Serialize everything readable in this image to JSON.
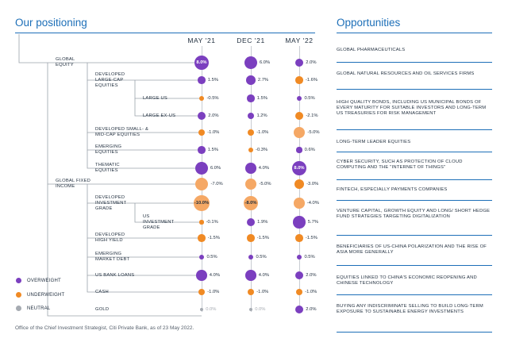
{
  "positioning": {
    "title": "Our positioning",
    "columns": [
      "MAY '21",
      "DEC '21",
      "MAY '22"
    ]
  },
  "legend": {
    "overweight": {
      "label": "OVERWEIGHT",
      "color": "#7b3fbf"
    },
    "underweight": {
      "label": "UNDERWEIGHT",
      "color": "#f08a24"
    },
    "neutral": {
      "label": "NEUTRAL",
      "color": "#a6abb2"
    }
  },
  "colors": {
    "overweight": "#7b3fbf",
    "underweight": "#f08a24",
    "underweight_light": "#f5a865",
    "neutral": "#a6abb2",
    "accent": "#1d6fb8"
  },
  "rows": [
    {
      "label": "GLOBAL EQUITY",
      "values": [
        {
          "text": "8.0%",
          "value": 8.0,
          "stance": "overweight"
        },
        {
          "text": "6.0%",
          "value": 6.0,
          "stance": "overweight"
        },
        {
          "text": "2.0%",
          "value": 2.0,
          "stance": "overweight"
        }
      ]
    },
    {
      "label": "DEVELOPED LARGE-CAP EQUITIES",
      "values": [
        {
          "text": "1.5%",
          "value": 1.5,
          "stance": "overweight"
        },
        {
          "text": "2.7%",
          "value": 2.7,
          "stance": "overweight"
        },
        {
          "text": "-1.6%",
          "value": -1.6,
          "stance": "underweight"
        }
      ]
    },
    {
      "label": "LARGE US",
      "values": [
        {
          "text": "-0.5%",
          "value": -0.5,
          "stance": "underweight"
        },
        {
          "text": "1.5%",
          "value": 1.5,
          "stance": "overweight"
        },
        {
          "text": "0.5%",
          "value": 0.5,
          "stance": "overweight"
        }
      ]
    },
    {
      "label": "LARGE EX-US",
      "values": [
        {
          "text": "2.0%",
          "value": 2.0,
          "stance": "overweight"
        },
        {
          "text": "1.2%",
          "value": 1.2,
          "stance": "overweight"
        },
        {
          "text": "-2.1%",
          "value": -2.1,
          "stance": "underweight"
        }
      ]
    },
    {
      "label": "DEVELOPED SMALL- & MID-CAP EQUITIES",
      "values": [
        {
          "text": "-1.0%",
          "value": -1.0,
          "stance": "underweight"
        },
        {
          "text": "-1.0%",
          "value": -1.0,
          "stance": "underweight"
        },
        {
          "text": "-5.0%",
          "value": -5.0,
          "stance": "underweight"
        }
      ]
    },
    {
      "label": "EMERGING EQUITIES",
      "values": [
        {
          "text": "1.5%",
          "value": 1.5,
          "stance": "overweight"
        },
        {
          "text": "-0.3%",
          "value": -0.3,
          "stance": "underweight"
        },
        {
          "text": "0.6%",
          "value": 0.6,
          "stance": "overweight"
        }
      ]
    },
    {
      "label": "THEMATIC EQUITIES",
      "values": [
        {
          "text": "6.0%",
          "value": 6.0,
          "stance": "overweight"
        },
        {
          "text": "4.0%",
          "value": 4.0,
          "stance": "overweight"
        },
        {
          "text": "8.0%",
          "value": 8.0,
          "stance": "overweight"
        }
      ]
    },
    {
      "label": "GLOBAL FIXED INCOME",
      "values": [
        {
          "text": "-7.0%",
          "value": -7.0,
          "stance": "underweight"
        },
        {
          "text": "-5.0%",
          "value": -5.0,
          "stance": "underweight"
        },
        {
          "text": "-3.0%",
          "value": -3.0,
          "stance": "underweight"
        }
      ]
    },
    {
      "label": "DEVELOPED INVESTMENT GRADE",
      "values": [
        {
          "text": "-10.0%",
          "value": -10.0,
          "stance": "underweight"
        },
        {
          "text": "-8.0%",
          "value": -8.0,
          "stance": "underweight"
        },
        {
          "text": "-4.0%",
          "value": -4.0,
          "stance": "underweight"
        }
      ]
    },
    {
      "label": "US INVESTMENT GRADE",
      "values": [
        {
          "text": "-0.1%",
          "value": -0.1,
          "stance": "underweight"
        },
        {
          "text": "1.9%",
          "value": 1.9,
          "stance": "overweight"
        },
        {
          "text": "5.7%",
          "value": 5.7,
          "stance": "overweight"
        }
      ]
    },
    {
      "label": "DEVELOPED HIGH YIELD",
      "values": [
        {
          "text": "-1.5%",
          "value": -1.5,
          "stance": "underweight"
        },
        {
          "text": "-1.5%",
          "value": -1.5,
          "stance": "underweight"
        },
        {
          "text": "-1.5%",
          "value": -1.5,
          "stance": "underweight"
        }
      ]
    },
    {
      "label": "EMERGING MARKET DEBT",
      "values": [
        {
          "text": "0.5%",
          "value": 0.5,
          "stance": "overweight"
        },
        {
          "text": "0.5%",
          "value": 0.5,
          "stance": "overweight"
        },
        {
          "text": "0.5%",
          "value": 0.5,
          "stance": "overweight"
        }
      ]
    },
    {
      "label": "US BANK LOANS",
      "values": [
        {
          "text": "4.0%",
          "value": 4.0,
          "stance": "overweight"
        },
        {
          "text": "4.0%",
          "value": 4.0,
          "stance": "overweight"
        },
        {
          "text": "2.0%",
          "value": 2.0,
          "stance": "overweight"
        }
      ]
    },
    {
      "label": "CASH",
      "values": [
        {
          "text": "-1.0%",
          "value": -1.0,
          "stance": "underweight"
        },
        {
          "text": "-1.0%",
          "value": -1.0,
          "stance": "underweight"
        },
        {
          "text": "-1.0%",
          "value": -1.0,
          "stance": "underweight"
        }
      ]
    },
    {
      "label": "GOLD",
      "values": [
        {
          "text": "0.0%",
          "value": 0.0,
          "stance": "neutral"
        },
        {
          "text": "0.0%",
          "value": 0.0,
          "stance": "neutral"
        },
        {
          "text": "2.0%",
          "value": 2.0,
          "stance": "overweight"
        }
      ]
    }
  ],
  "opportunities": {
    "title": "Opportunities",
    "items": [
      "GLOBAL PHARMACEUTICALS",
      "GLOBAL NATURAL RESOURCES AND OIL SERVICES FIRMS",
      "HIGH QUALITY BONDS, INCLUDING US MUNICIPAL BONDS OF EVERY MATURITY FOR SUITABLE INVESTORS AND LONG-TERM US TREASURIES FOR RISK MANAGEMENT",
      "LONG-TERM LEADER EQUITIES",
      "CYBER SECURITY, SUCH AS PROTECTION OF CLOUD COMPUTING AND THE \"INTERNET OF THINGS\"",
      "FINTECH, ESPECIALLY PAYMENTS COMPANIES",
      "VENTURE CAPITAL, GROWTH EQUITY AND LONG/ SHORT HEDGE FUND STRATEGIES TARGETING DIGITALIZATION",
      "BENEFICIARIES OF US-CHINA POLARIZATION AND THE RISE OF ASIA MORE GENERALLY",
      "EQUITIES LINKED TO CHINA'S ECONOMIC REOPENING AND CHINESE TECHNOLOGY",
      "BUYING ANY INDISCRIMINATE SELLING TO BUILD LONG-TERM EXPOSURE TO SUSTAINABLE ENERGY INVESTMENTS"
    ]
  },
  "footnote": "Office of the Chief Investment Strategist, Citi Private Bank, as of 23 May 2022."
}
